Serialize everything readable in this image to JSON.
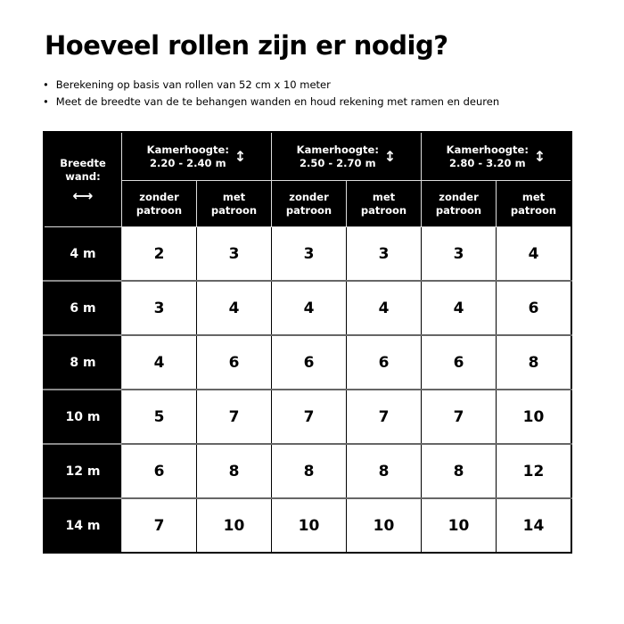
{
  "title": "Hoeveel rollen zijn er nodig?",
  "bullets": [
    "Berekening op basis van rollen van 52 cm x 10 meter",
    "Meet de breedte van de te behangen wanden en houd rekening met ramen en deuren"
  ],
  "table": {
    "corner_label_1": "Breedte",
    "corner_label_2": "wand:",
    "groups": [
      {
        "label": "Kamerhoogte:",
        "range": "2.20 - 2.40 m"
      },
      {
        "label": "Kamerhoogte:",
        "range": "2.50 - 2.70 m"
      },
      {
        "label": "Kamerhoogte:",
        "range": "2.80 - 3.20 m"
      }
    ],
    "sub_1": "zonder",
    "sub_2_zonder": "patroon",
    "sub_met": "met",
    "sub_2_met": "patroon",
    "rows": [
      {
        "width": "4 m",
        "values": [
          "2",
          "3",
          "3",
          "3",
          "3",
          "4"
        ]
      },
      {
        "width": "6 m",
        "values": [
          "3",
          "4",
          "4",
          "4",
          "4",
          "6"
        ]
      },
      {
        "width": "8 m",
        "values": [
          "4",
          "6",
          "6",
          "6",
          "6",
          "8"
        ]
      },
      {
        "width": "10 m",
        "values": [
          "5",
          "7",
          "7",
          "7",
          "7",
          "10"
        ]
      },
      {
        "width": "12 m",
        "values": [
          "6",
          "8",
          "8",
          "8",
          "8",
          "12"
        ]
      },
      {
        "width": "14 m",
        "values": [
          "7",
          "10",
          "10",
          "10",
          "10",
          "14"
        ]
      }
    ]
  }
}
